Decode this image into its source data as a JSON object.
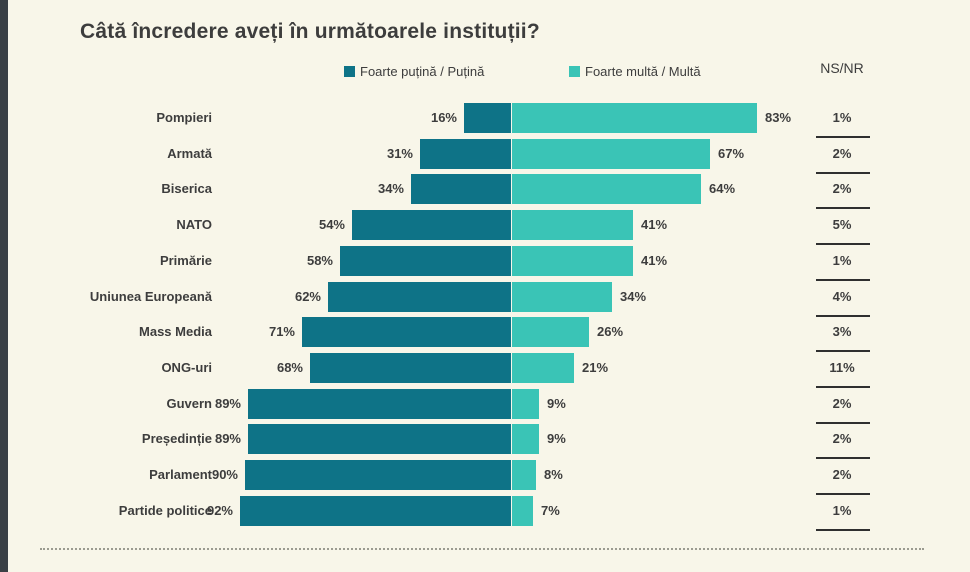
{
  "title": "Câtă încredere aveți în următoarele instituții?",
  "legend": {
    "negative_label": "Foarte puțină / Puțină",
    "positive_label": "Foarte multă / Multă",
    "nsnr_header": "NS/NR"
  },
  "colors": {
    "negative_bar": "#0E7387",
    "positive_bar": "#3AC4B6",
    "background": "#F8F6E9",
    "left_strip": "#3A4045",
    "text": "#3D3D3D"
  },
  "chart_data": {
    "type": "bar",
    "orientation": "horizontal-diverging",
    "title": "Câtă încredere aveți în următoarele instituții?",
    "unit": "%",
    "legend_position": "top",
    "series": [
      {
        "name": "Foarte puțină / Puțină",
        "values": [
          16,
          31,
          34,
          54,
          58,
          62,
          71,
          68,
          89,
          89,
          90,
          92
        ]
      },
      {
        "name": "Foarte multă / Multă",
        "values": [
          83,
          67,
          64,
          41,
          41,
          34,
          26,
          21,
          9,
          9,
          8,
          7
        ]
      },
      {
        "name": "NS/NR",
        "values": [
          1,
          2,
          2,
          5,
          1,
          4,
          3,
          11,
          2,
          2,
          2,
          1
        ]
      }
    ],
    "categories": [
      "Pompieri",
      "Armată",
      "Biserica",
      "NATO",
      "Primărie",
      "Uniunea Europeană",
      "Mass Media",
      "ONG-uri",
      "Guvern",
      "Președinție",
      "Parlament",
      "Partide politice"
    ],
    "rows": [
      {
        "label": "Pompieri",
        "negative": 16,
        "positive": 83,
        "nsnr": 1
      },
      {
        "label": "Armată",
        "negative": 31,
        "positive": 67,
        "nsnr": 2
      },
      {
        "label": "Biserica",
        "negative": 34,
        "positive": 64,
        "nsnr": 2
      },
      {
        "label": "NATO",
        "negative": 54,
        "positive": 41,
        "nsnr": 5
      },
      {
        "label": "Primărie",
        "negative": 58,
        "positive": 41,
        "nsnr": 1
      },
      {
        "label": "Uniunea Europeană",
        "negative": 62,
        "positive": 34,
        "nsnr": 4
      },
      {
        "label": "Mass Media",
        "negative": 71,
        "positive": 26,
        "nsnr": 3
      },
      {
        "label": "ONG-uri",
        "negative": 68,
        "positive": 21,
        "nsnr": 11
      },
      {
        "label": "Guvern",
        "negative": 89,
        "positive": 9,
        "nsnr": 2
      },
      {
        "label": "Președinție",
        "negative": 89,
        "positive": 9,
        "nsnr": 2
      },
      {
        "label": "Parlament",
        "negative": 90,
        "positive": 8,
        "nsnr": 2
      },
      {
        "label": "Partide politice",
        "negative": 92,
        "positive": 7,
        "nsnr": 1
      }
    ]
  }
}
